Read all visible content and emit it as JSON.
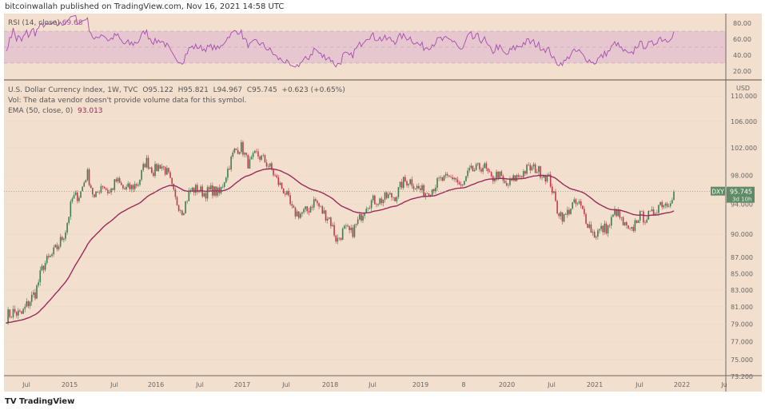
{
  "header": {
    "published": "bitcoinwallah published on TradingView.com, Nov 16, 2021 14:58 UTC"
  },
  "footer": {
    "logo_text": "TradingView",
    "logo_icon": "tradingview-logo-icon"
  },
  "colors": {
    "background": "#f3dfce",
    "rsi_band": "#e6c6cf",
    "rsi_line": "#a64cb0",
    "ema": "#9b2a5a",
    "up": "#3f7d4e",
    "down": "#c23a4a",
    "price_label": "#5f8b67"
  },
  "chart_data": {
    "type": "candlestick",
    "title": "U.S. Dollar Currency Index, 1W, TVC",
    "symbol": "DXY",
    "ohlc": {
      "open": "O95.122",
      "high": "H95.821",
      "low": "L94.967",
      "close": "C95.745",
      "change": "+0.623 (+0.65%)"
    },
    "volume_note": "Vol: The data vendor doesn't provide volume data for this symbol.",
    "ema": {
      "label": "EMA (50, close, 0)",
      "value": "93.013"
    },
    "rsi": {
      "label": "RSI (14, close)",
      "value": "69.68",
      "ticks": [
        "80.00",
        "60.00",
        "40.00",
        "20.00"
      ],
      "band": [
        30,
        70
      ]
    },
    "price_label": {
      "value": "95.745",
      "countdown": "3d 10h"
    },
    "currency": "USD",
    "y_ticks": [
      "110.000",
      "106.000",
      "102.000",
      "98.000",
      "94.000",
      "90.000",
      "87.000",
      "85.000",
      "83.000",
      "81.000",
      "79.000",
      "77.000",
      "75.000",
      "73.200"
    ],
    "x_ticks": [
      "Jul",
      "2015",
      "Jul",
      "2016",
      "Jul",
      "2017",
      "Jul",
      "2018",
      "Jul",
      "2019",
      "8",
      "2020",
      "Jul",
      "2021",
      "Jul",
      "2022",
      "Ju"
    ],
    "start": "2014-04",
    "monthly_closes": [
      79.9,
      80.4,
      80.0,
      81.5,
      82.8,
      86.0,
      87.0,
      88.4,
      90.3,
      94.8,
      95.3,
      98.4,
      94.6,
      96.9,
      95.5,
      97.3,
      96.0,
      96.3,
      97.0,
      100.2,
      98.6,
      99.6,
      98.2,
      94.6,
      93.1,
      95.9,
      96.1,
      95.5,
      96.0,
      95.4,
      98.4,
      101.5,
      102.2,
      99.5,
      101.1,
      100.3,
      99.0,
      97.0,
      95.6,
      92.9,
      92.7,
      93.1,
      94.6,
      93.0,
      92.1,
      89.1,
      90.6,
      90.1,
      91.8,
      94.0,
      94.5,
      94.5,
      95.1,
      95.1,
      97.1,
      97.3,
      96.2,
      95.6,
      96.2,
      97.3,
      97.5,
      97.8,
      96.1,
      98.5,
      98.9,
      99.4,
      97.4,
      98.3,
      96.4,
      97.4,
      98.1,
      99.0,
      99.0,
      98.3,
      97.4,
      93.3,
      92.1,
      93.9,
      94.0,
      91.9,
      89.9,
      90.6,
      90.9,
      93.2,
      91.3,
      90.0,
      92.4,
      92.2,
      92.6,
      94.2,
      94.1,
      95.745
    ]
  }
}
